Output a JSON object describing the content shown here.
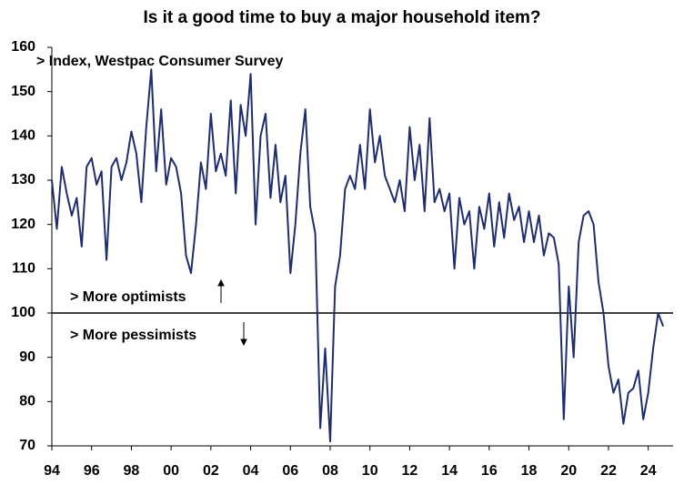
{
  "chart_data": {
    "type": "line",
    "title": "Is it a good time to buy a major household item?",
    "annotations": [
      "> Index, Westpac Consumer Survey",
      "> More optimists",
      "> More pessimists"
    ],
    "x": [
      1994,
      1994.25,
      1994.5,
      1994.75,
      1995,
      1995.25,
      1995.5,
      1995.75,
      1996,
      1996.25,
      1996.5,
      1996.75,
      1997,
      1997.25,
      1997.5,
      1997.75,
      1998,
      1998.25,
      1998.5,
      1998.75,
      1999,
      1999.25,
      1999.5,
      1999.75,
      2000,
      2000.25,
      2000.5,
      2000.75,
      2001,
      2001.25,
      2001.5,
      2001.75,
      2002,
      2002.25,
      2002.5,
      2002.75,
      2003,
      2003.25,
      2003.5,
      2003.75,
      2004,
      2004.25,
      2004.5,
      2004.75,
      2005,
      2005.25,
      2005.5,
      2005.75,
      2006,
      2006.25,
      2006.5,
      2006.75,
      2007,
      2007.25,
      2007.5,
      2007.75,
      2008,
      2008.25,
      2008.5,
      2008.75,
      2009,
      2009.25,
      2009.5,
      2009.75,
      2010,
      2010.25,
      2010.5,
      2010.75,
      2011,
      2011.25,
      2011.5,
      2011.75,
      2012,
      2012.25,
      2012.5,
      2012.75,
      2013,
      2013.25,
      2013.5,
      2013.75,
      2014,
      2014.25,
      2014.5,
      2014.75,
      2015,
      2015.25,
      2015.5,
      2015.75,
      2016,
      2016.25,
      2016.5,
      2016.75,
      2017,
      2017.25,
      2017.5,
      2017.75,
      2018,
      2018.25,
      2018.5,
      2018.75,
      2019,
      2019.25,
      2019.5,
      2019.75,
      2020,
      2020.25,
      2020.5,
      2020.75,
      2021,
      2021.25,
      2021.5,
      2021.75,
      2022,
      2022.25,
      2022.5,
      2022.75,
      2023,
      2023.25,
      2023.5,
      2023.75,
      2024,
      2024.25,
      2024.5,
      2024.75
    ],
    "series": [
      {
        "name": "Index",
        "color": "#1f2d6e",
        "values": [
          130,
          119,
          133,
          127,
          122,
          126,
          115,
          133,
          135,
          129,
          132,
          112,
          133,
          135,
          130,
          134,
          141,
          136,
          125,
          142,
          155,
          132,
          146,
          129,
          135,
          133,
          127,
          113,
          109,
          120,
          134,
          128,
          145,
          132,
          136,
          131,
          148,
          127,
          147,
          140,
          154,
          120,
          140,
          145,
          126,
          138,
          125,
          131,
          109,
          120,
          136,
          146,
          124,
          118,
          74,
          92,
          71,
          106,
          113,
          128,
          131,
          128,
          138,
          128,
          146,
          134,
          140,
          131,
          128,
          125,
          130,
          123,
          142,
          130,
          138,
          123,
          144,
          125,
          128,
          123,
          127,
          110,
          126,
          120,
          123,
          110,
          124,
          119,
          127,
          115,
          125,
          117,
          127,
          121,
          124,
          116,
          123,
          116,
          122,
          113,
          118,
          117,
          111,
          76,
          106,
          90,
          116,
          122,
          123,
          120,
          107,
          100,
          88,
          82,
          85,
          75,
          82,
          83,
          87,
          76,
          82,
          92,
          100,
          97
        ]
      }
    ],
    "reference_line": 100,
    "xlim": [
      1994,
      2025.25
    ],
    "xticks": [
      {
        "value": 1994,
        "label": "94"
      },
      {
        "value": 1996,
        "label": "96"
      },
      {
        "value": 1998,
        "label": "98"
      },
      {
        "value": 2000,
        "label": "00"
      },
      {
        "value": 2002,
        "label": "02"
      },
      {
        "value": 2004,
        "label": "04"
      },
      {
        "value": 2006,
        "label": "06"
      },
      {
        "value": 2008,
        "label": "08"
      },
      {
        "value": 2010,
        "label": "10"
      },
      {
        "value": 2012,
        "label": "12"
      },
      {
        "value": 2014,
        "label": "14"
      },
      {
        "value": 2016,
        "label": "16"
      },
      {
        "value": 2018,
        "label": "18"
      },
      {
        "value": 2020,
        "label": "20"
      },
      {
        "value": 2022,
        "label": "22"
      },
      {
        "value": 2024,
        "label": "24"
      }
    ],
    "ylim": [
      70,
      160
    ],
    "yticks": [
      70,
      80,
      90,
      100,
      110,
      120,
      130,
      140,
      150,
      160
    ],
    "grid": false
  }
}
